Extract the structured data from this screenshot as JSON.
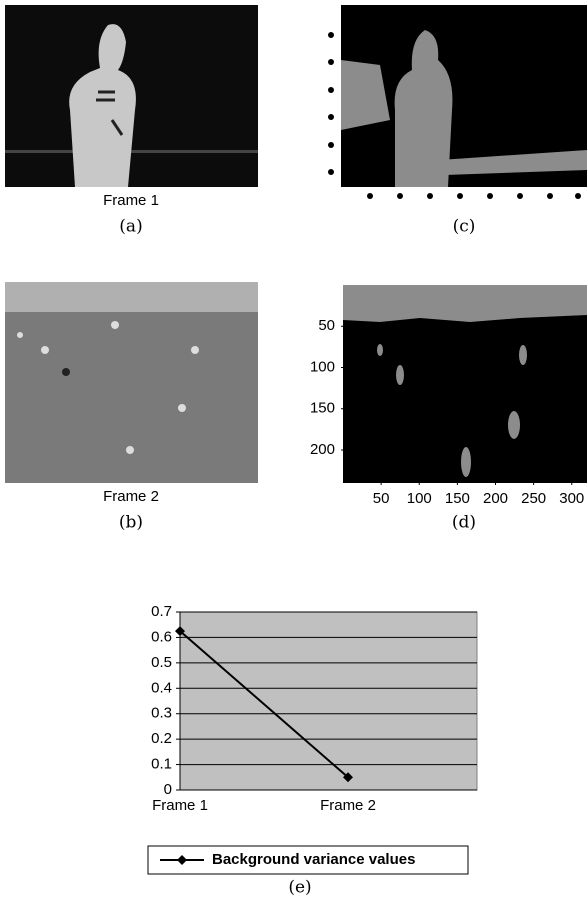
{
  "panels": {
    "a": {
      "caption": "Frame 1",
      "label": "(a)"
    },
    "c": {
      "label": "(c)"
    },
    "b": {
      "caption": "Frame 2",
      "label": "(b)"
    },
    "d": {
      "label": "(d)",
      "axes": {
        "xlim": [
          0,
          320
        ],
        "ylim": [
          0,
          240
        ],
        "xticks": [
          50,
          100,
          150,
          200,
          250,
          300
        ],
        "yticks": [
          50,
          100,
          150,
          200
        ]
      }
    },
    "e": {
      "label": "(e)"
    }
  },
  "chart_data": {
    "type": "line",
    "categories": [
      "Frame 1",
      "Frame 2"
    ],
    "series": [
      {
        "name": "Background variance values",
        "color": "#000000",
        "values": [
          0.625,
          0.05
        ]
      }
    ],
    "ylim": [
      0,
      0.7
    ],
    "yticks": [
      0,
      0.1,
      0.2,
      0.3,
      0.4,
      0.5,
      0.6,
      0.7
    ],
    "grid": true
  }
}
